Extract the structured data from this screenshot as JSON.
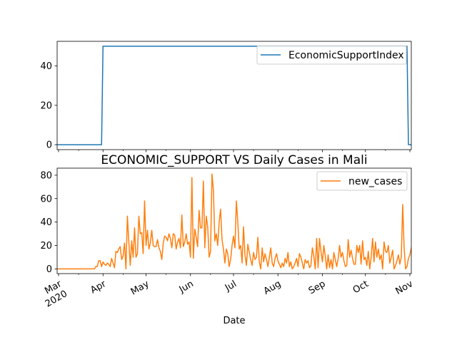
{
  "chart_data": [
    {
      "type": "line",
      "title": "",
      "xlabel": "",
      "ylabel": "",
      "ylim": [
        -2.5,
        52.5
      ],
      "xlim": [
        "2020-02-29",
        "2020-11-02"
      ],
      "yticks": [
        0,
        20,
        40
      ],
      "xticks_shown": false,
      "legend": "top-right",
      "series": [
        {
          "name": "EconomicSupportIndex",
          "color": "#1f77b4",
          "points": [
            [
              "2020-02-29",
              0
            ],
            [
              "2020-03-31",
              0
            ],
            [
              "2020-04-01",
              50
            ],
            [
              "2020-10-30",
              50
            ],
            [
              "2020-10-31",
              0
            ],
            [
              "2020-11-02",
              0
            ]
          ]
        }
      ]
    },
    {
      "type": "line",
      "title": "ECONOMIC_SUPPORT VS Daily Cases in Mali",
      "xlabel": "Date",
      "ylabel": "",
      "ylim": [
        -4,
        86
      ],
      "xlim": [
        "2020-02-29",
        "2020-11-02"
      ],
      "yticks": [
        0,
        20,
        40,
        60,
        80
      ],
      "xticks": [
        {
          "date": "2020-03-01",
          "label": "Mar",
          "sublabel": "2020"
        },
        {
          "date": "2020-04-01",
          "label": "Apr"
        },
        {
          "date": "2020-05-01",
          "label": "May"
        },
        {
          "date": "2020-06-01",
          "label": "Jun"
        },
        {
          "date": "2020-07-01",
          "label": "Jul"
        },
        {
          "date": "2020-08-01",
          "label": "Aug"
        },
        {
          "date": "2020-09-01",
          "label": "Sep"
        },
        {
          "date": "2020-10-01",
          "label": "Oct"
        },
        {
          "date": "2020-11-01",
          "label": "Nov"
        }
      ],
      "legend": "top-right",
      "series": [
        {
          "name": "new_cases",
          "color": "#ff7f0e",
          "start_date": "2020-02-29",
          "values": [
            0,
            0,
            0,
            0,
            0,
            0,
            0,
            0,
            0,
            0,
            0,
            0,
            0,
            0,
            0,
            0,
            0,
            0,
            0,
            0,
            0,
            0,
            0,
            0,
            0,
            0,
            0,
            2,
            2,
            7,
            7,
            2,
            6,
            4,
            3,
            5,
            4,
            2,
            9,
            5,
            1,
            15,
            14,
            17,
            19,
            8,
            11,
            22,
            0,
            45,
            23,
            3,
            24,
            10,
            35,
            10,
            13,
            45,
            30,
            31,
            13,
            58,
            20,
            33,
            17,
            22,
            33,
            20,
            19,
            19,
            25,
            18,
            15,
            8,
            22,
            28,
            27,
            24,
            30,
            26,
            18,
            30,
            29,
            17,
            23,
            26,
            18,
            46,
            19,
            23,
            30,
            21,
            23,
            10,
            78,
            9,
            34,
            27,
            19,
            50,
            35,
            35,
            75,
            18,
            45,
            36,
            10,
            15,
            81,
            67,
            24,
            30,
            20,
            40,
            51,
            25,
            17,
            5,
            17,
            13,
            2,
            8,
            20,
            28,
            18,
            58,
            40,
            17,
            20,
            5,
            36,
            12,
            3,
            21,
            14,
            8,
            3,
            14,
            8,
            10,
            27,
            6,
            0,
            18,
            6,
            13,
            8,
            2,
            10,
            18,
            5,
            2,
            9,
            13,
            7,
            4,
            1,
            5,
            2,
            9,
            5,
            14,
            2,
            6,
            0,
            2,
            5,
            9,
            2,
            13,
            10,
            5,
            0,
            8,
            5,
            7,
            1,
            3,
            18,
            11,
            0,
            26,
            1,
            26,
            15,
            6,
            20,
            11,
            0,
            12,
            1,
            8,
            0,
            14,
            8,
            2,
            9,
            20,
            10,
            14,
            7,
            2,
            3,
            25,
            10,
            16,
            9,
            4,
            4,
            20,
            14,
            20,
            4,
            24,
            8,
            10,
            3,
            15,
            0,
            10,
            26,
            6,
            23,
            10,
            17,
            8,
            12,
            0,
            23,
            15,
            14,
            20,
            5,
            10,
            16,
            0,
            3,
            7,
            12,
            4,
            10,
            55,
            18,
            0,
            2,
            9,
            12,
            18,
            12,
            10,
            6,
            16,
            5,
            28,
            15,
            8,
            5,
            17,
            16,
            7,
            8,
            10,
            11,
            11
          ]
        }
      ]
    }
  ]
}
